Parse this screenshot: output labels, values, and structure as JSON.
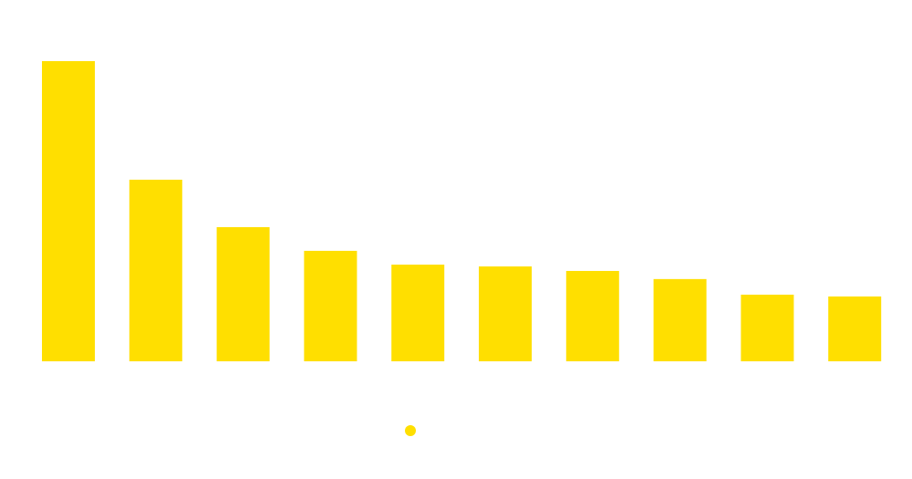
{
  "chart_data": {
    "type": "bar",
    "title": "",
    "xlabel": "",
    "ylabel": "",
    "categories": [
      "",
      "",
      "",
      "",
      "",
      "",
      "",
      "",
      "",
      ""
    ],
    "series": [
      {
        "name": "",
        "color": "#FFDF00",
        "values": [
          100,
          60.5,
          44.7,
          36.8,
          32.2,
          31.6,
          30.1,
          27.4,
          22.2,
          21.6
        ]
      }
    ],
    "ylim": [
      0,
      100
    ],
    "grid": false,
    "legend": "bottom-center"
  }
}
